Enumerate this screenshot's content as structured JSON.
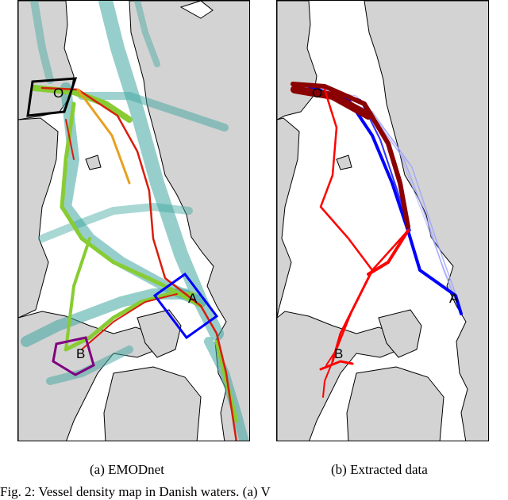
{
  "panels": [
    {
      "caption": "(a) EMODnet",
      "labels": {
        "origin": "O",
        "point_a": "A",
        "point_b": "B"
      },
      "colors": {
        "land": "#d3d3d3",
        "sea": "#ffffff",
        "density_low": "#3fa6a0",
        "density_mid": "#88cc33",
        "density_high": "#d81e0e",
        "box_origin": "#000000",
        "box_a": "#0000ff",
        "box_b": "#800080"
      }
    },
    {
      "caption": "(b) Extracted data",
      "labels": {
        "origin": "O",
        "point_a": "A",
        "point_b": "B"
      },
      "colors": {
        "route_dark": "#8b0000",
        "route_red": "#ff0000",
        "route_blue": "#0000ff",
        "route_faint": "#9aa0ff"
      }
    }
  ],
  "figure_text": "Fig. 2:  Vessel density map in Danish waters. (a) V"
}
